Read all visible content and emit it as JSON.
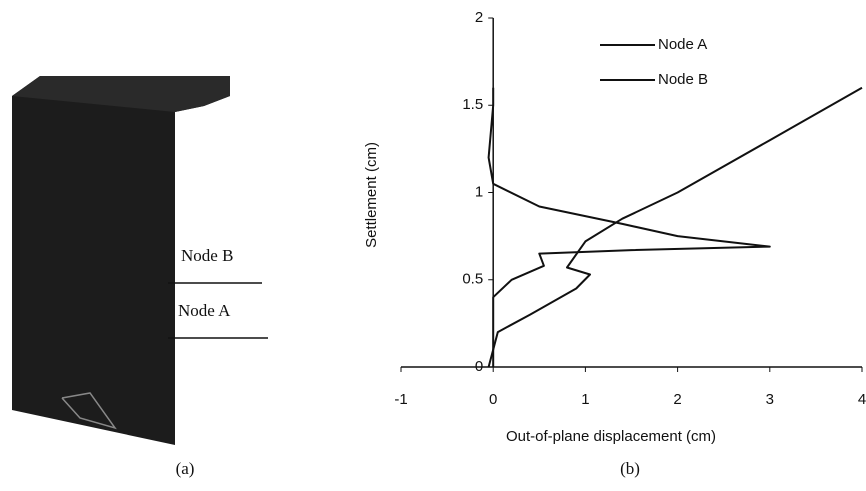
{
  "panel_a": {
    "labels": [
      "Node B",
      "Node A"
    ],
    "caption": "(a)"
  },
  "chart_data": {
    "type": "line",
    "caption": "(b)",
    "x_label": "Out-of-plane displacement (cm)",
    "y_label": "Settlement (cm)",
    "xlim": [
      -1,
      4
    ],
    "xticks": [
      -1,
      0,
      1,
      2,
      3,
      4
    ],
    "ylim": [
      0,
      2
    ],
    "yticks": [
      0,
      0.5,
      1,
      1.5,
      2
    ],
    "legend": "upper right",
    "series": [
      {
        "name": "Node A",
        "color": "#111111",
        "x": [
          -0.05,
          0,
          0.05,
          0.4,
          0.9,
          1.05,
          0.8,
          1.0,
          1.4,
          2,
          3,
          4
        ],
        "values": [
          0,
          0.1,
          0.2,
          0.3,
          0.45,
          0.53,
          0.57,
          0.72,
          0.85,
          1.0,
          1.3,
          1.6
        ]
      },
      {
        "name": "Node B",
        "color": "#111111",
        "x": [
          0,
          0,
          0.2,
          0.55,
          0.5,
          1.5,
          3,
          2,
          1.4,
          0.5,
          0,
          -0.05,
          0,
          0
        ],
        "values": [
          0,
          0.4,
          0.5,
          0.58,
          0.65,
          0.67,
          0.69,
          0.75,
          0.82,
          0.92,
          1.05,
          1.2,
          1.5,
          1.6
        ]
      }
    ]
  }
}
